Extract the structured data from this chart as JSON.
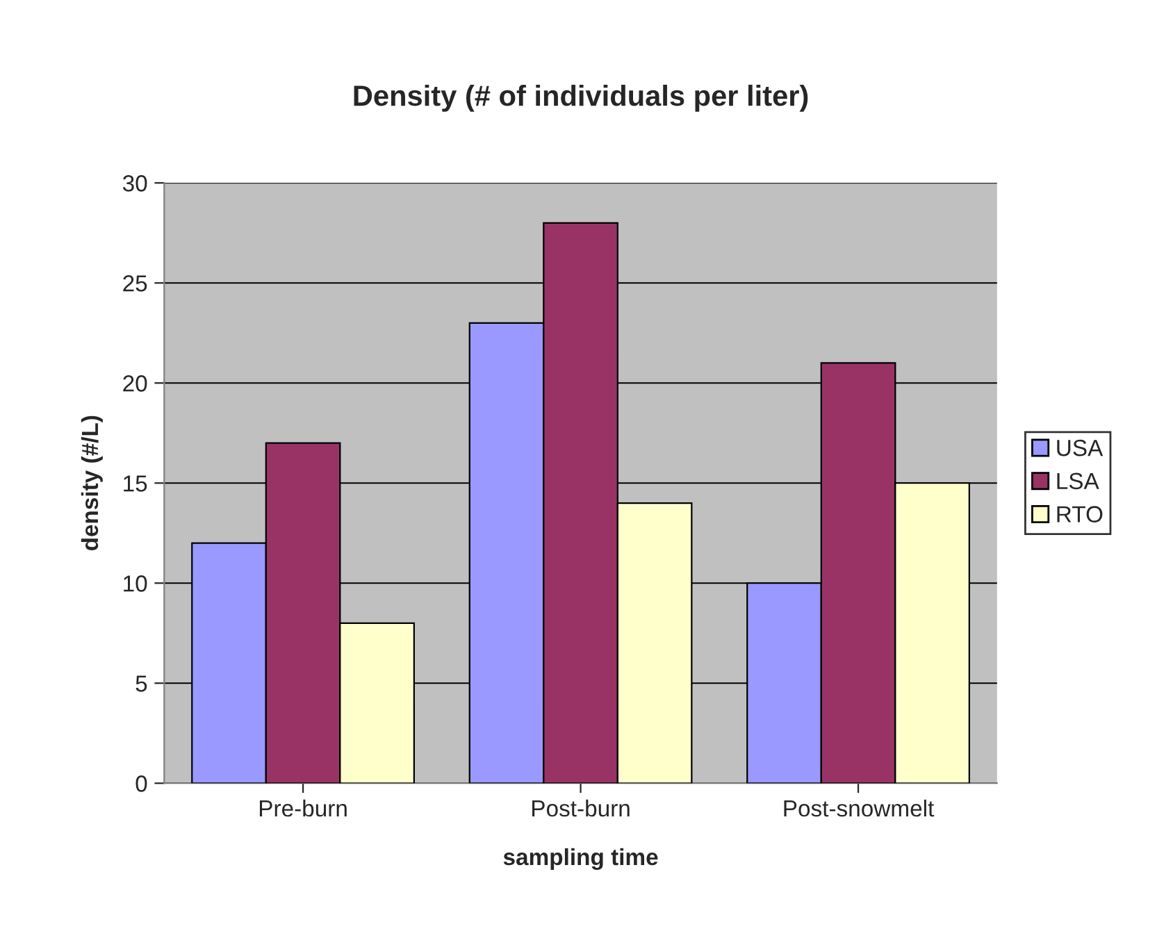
{
  "chart_data": {
    "type": "bar",
    "title": "Density (# of individuals per liter)",
    "xlabel": "sampling time",
    "ylabel": "density (#/L)",
    "categories": [
      "Pre-burn",
      "Post-burn",
      "Post-snowmelt"
    ],
    "series": [
      {
        "name": "USA",
        "color": "#9999ff",
        "values": [
          12,
          23,
          10
        ]
      },
      {
        "name": "LSA",
        "color": "#993366",
        "values": [
          17,
          28,
          21
        ]
      },
      {
        "name": "RTO",
        "color": "#ffffcc",
        "values": [
          8,
          14,
          15
        ]
      }
    ],
    "ylim": [
      0,
      30
    ],
    "yticks": [
      0,
      5,
      10,
      15,
      20,
      25,
      30
    ],
    "grid": "y",
    "legend": "right"
  }
}
